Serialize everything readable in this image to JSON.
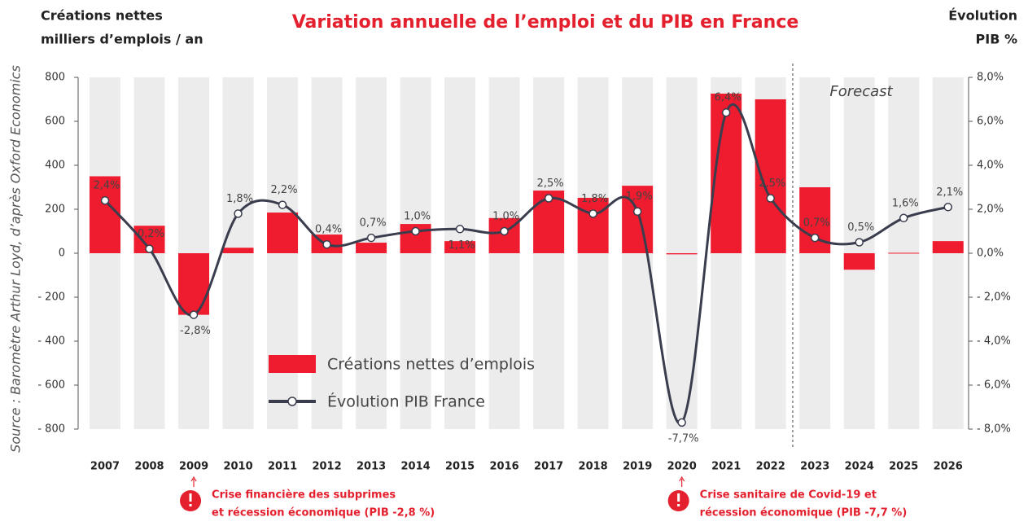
{
  "chart_data": {
    "type": "bar-line",
    "title": "Variation annuelle de l’emploi et du PIB en France",
    "y_axis_title": [
      "Créations nettes",
      "milliers d’emplois / an"
    ],
    "y2_axis_title": [
      "Évolution",
      "PIB %"
    ],
    "source": "Source : Baromètre Arthur Loyd, d’après Oxford Economics",
    "forecast_label": "Forecast",
    "categories": [
      "2007",
      "2008",
      "2009",
      "2010",
      "2011",
      "2012",
      "2013",
      "2014",
      "2015",
      "2016",
      "2017",
      "2018",
      "2019",
      "2020",
      "2021",
      "2022",
      "2023",
      "2024",
      "2025",
      "2026"
    ],
    "series": [
      {
        "name": "Créations nettes d’emplois",
        "type": "bar",
        "color": "#ee1c2e",
        "values": [
          350,
          125,
          -280,
          25,
          185,
          85,
          48,
          133,
          55,
          160,
          285,
          252,
          307,
          -5,
          726,
          700,
          300,
          -75,
          2,
          55
        ]
      },
      {
        "name": "Évolution PIB France",
        "type": "line",
        "axis": "y2",
        "color": "#3a3d4d",
        "values": [
          2.4,
          0.2,
          -2.8,
          1.8,
          2.2,
          0.4,
          0.7,
          1.0,
          1.1,
          1.0,
          2.5,
          1.8,
          1.9,
          -7.7,
          6.4,
          2.5,
          0.7,
          0.5,
          1.6,
          2.1
        ],
        "value_labels": [
          "2,4%",
          "0,2%",
          "-2,8%",
          "1,8%",
          "2,2%",
          "0,4%",
          "0,7%",
          "1,0%",
          "1,1%",
          "1,0%",
          "2,5%",
          "1,8%",
          "1,9%",
          "-7,7%",
          "6,4%",
          "2,5%",
          "0,7%",
          "0,5%",
          "1,6%",
          "2,1%"
        ]
      }
    ],
    "ylim": [
      -800,
      800
    ],
    "yticks": [
      {
        "value": -800,
        "label": "- 800"
      },
      {
        "value": -600,
        "label": "- 600"
      },
      {
        "value": -400,
        "label": "- 400"
      },
      {
        "value": -200,
        "label": "- 200"
      },
      0,
      200,
      400,
      600,
      800
    ],
    "y2lim": [
      -8,
      8
    ],
    "y2ticks": [
      {
        "value": -8,
        "label": "- 8,0%"
      },
      {
        "value": -6,
        "label": "- 6,0%"
      },
      {
        "value": -4,
        "label": "- 4,0%"
      },
      {
        "value": -2,
        "label": "- 2,0%"
      },
      {
        "value": 0,
        "label": "0,0%"
      },
      {
        "value": 2,
        "label": "2,0%"
      },
      {
        "value": 4,
        "label": "4,0%"
      },
      {
        "value": 6,
        "label": "6,0%"
      },
      {
        "value": 8,
        "label": "8,0%"
      }
    ],
    "annotations": [
      {
        "category": "2009",
        "lines": [
          "Crise financière des subprimes",
          "et récession économique (PIB -2,8 %)"
        ]
      },
      {
        "category": "2020",
        "lines": [
          "Crise sanitaire de Covid-19 et",
          "récession économique (PIB -7,7 %)"
        ]
      }
    ]
  }
}
